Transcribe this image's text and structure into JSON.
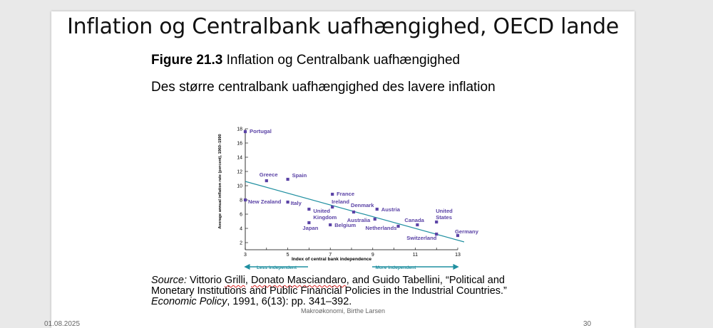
{
  "slide": {
    "title": "Inflation og Centralbank uafhængighed, OECD lande",
    "figure_number": "Figure 21.3",
    "figure_caption": "Inflation og Centralbank uafhængighed",
    "subtitle": "Des større centralbank uafhængighed des lavere inflation",
    "source": {
      "prefix": "Source:",
      "author1_first": "Vittorio",
      "author1_last": "Grilli",
      "author2": "Donato Masciandaro",
      "text_mid": ", and Guido Tabellini, “Political and Monetary Institutions and Public Financial Policies in the Industrial Countries.”",
      "journal": "Economic Policy",
      "text_end": ", 1991, 6(13): pp. 341–392."
    },
    "footer_center": "Makroøkonomi, Birthe Larsen",
    "footer_date": "01.08.2025",
    "footer_page": "30"
  },
  "colors": {
    "point": "#5b43a6",
    "trend": "#1f8fa0"
  },
  "chart_data": {
    "type": "scatter",
    "xlabel": "Index of central bank independence",
    "ylabel": "Average annual inflation rate (percent), 1960–1990",
    "xlim": [
      3,
      13
    ],
    "ylim": [
      1,
      18
    ],
    "x_ticks": [
      3,
      5,
      7,
      9,
      11,
      13
    ],
    "y_ticks": [
      2,
      4,
      6,
      8,
      10,
      12,
      14,
      16,
      18
    ],
    "trendline": {
      "x": [
        3,
        13.3
      ],
      "y": [
        10.6,
        2.1
      ]
    },
    "left_arrow_label": "Less independent",
    "right_arrow_label": "More independent",
    "points": [
      {
        "label": "Portugal",
        "x": 3.0,
        "y": 17.6
      },
      {
        "label": "Greece",
        "x": 4.0,
        "y": 10.7
      },
      {
        "label": "Spain",
        "x": 5.0,
        "y": 10.9
      },
      {
        "label": "New Zealand",
        "x": 3.0,
        "y": 8.0
      },
      {
        "label": "Italy",
        "x": 5.0,
        "y": 7.7
      },
      {
        "label": "France",
        "x": 7.1,
        "y": 8.8
      },
      {
        "label": "Ireland",
        "x": 7.1,
        "y": 7.0
      },
      {
        "label": "United Kingdom",
        "x": 6.0,
        "y": 6.7
      },
      {
        "label": "Denmark",
        "x": 8.1,
        "y": 6.3
      },
      {
        "label": "Austria",
        "x": 9.2,
        "y": 6.7
      },
      {
        "label": "Australia",
        "x": 9.1,
        "y": 5.3
      },
      {
        "label": "Japan",
        "x": 6.0,
        "y": 4.8
      },
      {
        "label": "Belgium",
        "x": 7.0,
        "y": 4.5
      },
      {
        "label": "Canada",
        "x": 11.1,
        "y": 4.5
      },
      {
        "label": "Netherlands",
        "x": 10.2,
        "y": 4.3
      },
      {
        "label": "United States",
        "x": 12.0,
        "y": 4.9
      },
      {
        "label": "Germany",
        "x": 13.0,
        "y": 3.0
      },
      {
        "label": "Switzerland",
        "x": 12.0,
        "y": 3.2
      }
    ]
  }
}
